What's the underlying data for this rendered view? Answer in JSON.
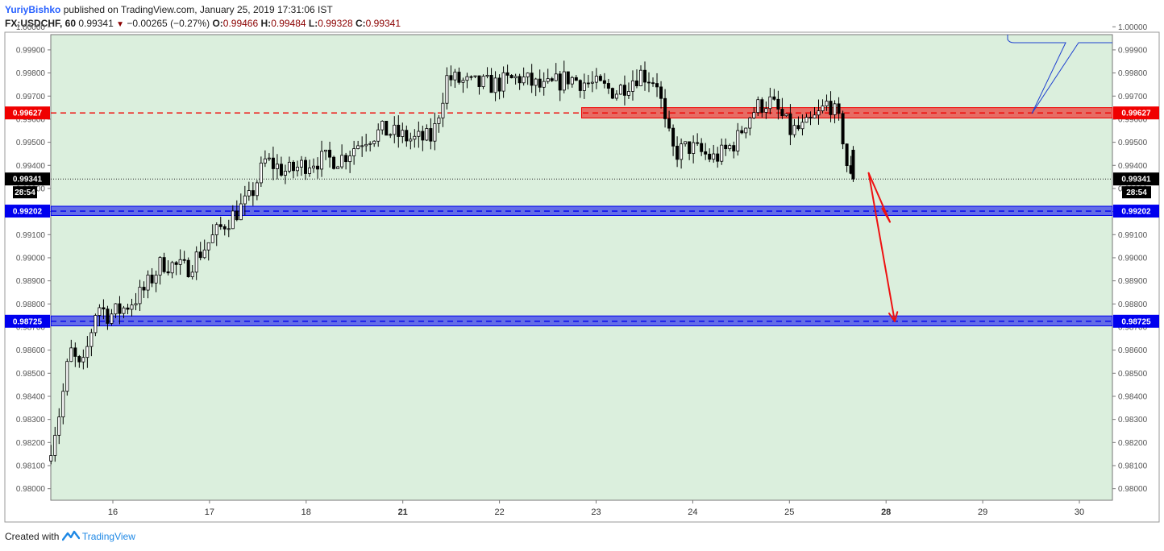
{
  "header": {
    "author": "YuriyBishko",
    "published": "published on TradingView.com, January 25, 2019 17:31:06 IST"
  },
  "ohlc": {
    "symbol": "FX:USDCHF, 60",
    "last": "0.99341",
    "change": "−0.00265 (−0.27%)",
    "o_label": "O:",
    "o": "0.99466",
    "h_label": "H:",
    "h": "0.99484",
    "l_label": "L:",
    "l": "0.99328",
    "c_label": "C:",
    "c": "0.99341"
  },
  "footer": {
    "created_with": "Created with",
    "brand": "TradingView"
  },
  "colors": {
    "background": "#dbefdd",
    "resistance": "#f00000",
    "support": "#0000ee",
    "arrow": "#ee1111",
    "callout": "#1e40d0"
  },
  "chart_data": {
    "type": "candlestick",
    "ylim": [
      0.9795,
      0.99966
    ],
    "y_ticks": [
      "0.98000",
      "0.98100",
      "0.98200",
      "0.98300",
      "0.98400",
      "0.98500",
      "0.98600",
      "0.98700",
      "0.98800",
      "0.98900",
      "0.99000",
      "0.99100",
      "0.99200",
      "0.99300",
      "0.99400",
      "0.99500",
      "0.99600",
      "0.99700",
      "0.99800",
      "0.99900",
      "1.00000"
    ],
    "x_ticks": [
      {
        "label": "16",
        "d": 16,
        "bold": false
      },
      {
        "label": "17",
        "d": 17,
        "bold": false
      },
      {
        "label": "18",
        "d": 18,
        "bold": false
      },
      {
        "label": "21",
        "d": 19,
        "bold": true
      },
      {
        "label": "22",
        "d": 20,
        "bold": false
      },
      {
        "label": "23",
        "d": 21,
        "bold": false
      },
      {
        "label": "24",
        "d": 22,
        "bold": false
      },
      {
        "label": "25",
        "d": 23,
        "bold": false
      },
      {
        "label": "28",
        "d": 24,
        "bold": true
      },
      {
        "label": "29",
        "d": 25,
        "bold": false
      },
      {
        "label": "30",
        "d": 26,
        "bold": false
      }
    ],
    "x_range": [
      15.36,
      26.35
    ],
    "levels": [
      {
        "name": "resistance",
        "price": 0.99627,
        "label": "0.99627",
        "band": [
          0.99605,
          0.9965
        ],
        "band_from": 20.85,
        "color": "#f00000"
      },
      {
        "name": "support-1",
        "price": 0.99202,
        "label": "0.99202",
        "band": [
          0.99183,
          0.99223
        ],
        "band_from": 15.36,
        "color": "#0000ee"
      },
      {
        "name": "support-2",
        "price": 0.98725,
        "label": "0.98725",
        "band": [
          0.98705,
          0.98748
        ],
        "band_from": 15.36,
        "color": "#0000ee"
      }
    ],
    "last_price": {
      "price": 0.99341,
      "label": "0.99341",
      "countdown": "28:54"
    },
    "projection": [
      {
        "from": [
          23.82,
          0.99367
        ],
        "to": [
          24.04,
          0.99155
        ]
      },
      {
        "from": [
          24.04,
          0.99155
        ],
        "to": [
          23.96,
          0.99214
        ]
      },
      {
        "from": [
          23.82,
          0.99367
        ],
        "to": [
          24.09,
          0.98725
        ]
      }
    ],
    "anchors": [
      [
        15.36,
        0.9812
      ],
      [
        15.5,
        0.9835
      ],
      [
        15.6,
        0.986
      ],
      [
        15.72,
        0.985
      ],
      [
        15.88,
        0.988
      ],
      [
        16.0,
        0.9875
      ],
      [
        16.15,
        0.9878
      ],
      [
        16.35,
        0.9885
      ],
      [
        16.55,
        0.9898
      ],
      [
        16.8,
        0.9895
      ],
      [
        17.0,
        0.9905
      ],
      [
        17.2,
        0.9915
      ],
      [
        17.45,
        0.9925
      ],
      [
        17.62,
        0.9942
      ],
      [
        17.85,
        0.9937
      ],
      [
        18.1,
        0.9942
      ],
      [
        18.4,
        0.9943
      ],
      [
        18.65,
        0.9952
      ],
      [
        18.85,
        0.9955
      ],
      [
        19.15,
        0.9951
      ],
      [
        19.35,
        0.9952
      ],
      [
        19.5,
        0.9978
      ],
      [
        19.75,
        0.9975
      ],
      [
        20.0,
        0.9975
      ],
      [
        20.25,
        0.9978
      ],
      [
        20.5,
        0.9973
      ],
      [
        20.75,
        0.9978
      ],
      [
        21.0,
        0.9975
      ],
      [
        21.25,
        0.9972
      ],
      [
        21.5,
        0.998
      ],
      [
        21.68,
        0.9976
      ],
      [
        21.75,
        0.9958
      ],
      [
        21.85,
        0.9945
      ],
      [
        22.0,
        0.9948
      ],
      [
        22.25,
        0.9943
      ],
      [
        22.35,
        0.9945
      ],
      [
        22.5,
        0.9951
      ],
      [
        22.6,
        0.996
      ],
      [
        22.7,
        0.9965
      ],
      [
        22.83,
        0.9968
      ],
      [
        22.95,
        0.9962
      ],
      [
        23.05,
        0.9955
      ],
      [
        23.2,
        0.9956
      ],
      [
        23.35,
        0.9962
      ],
      [
        23.45,
        0.9968
      ],
      [
        23.58,
        0.9956
      ],
      [
        23.66,
        0.9934
      ]
    ],
    "ohlc_last": {
      "o": 0.99466,
      "h": 0.99484,
      "l": 0.99328,
      "c": 0.99341
    }
  }
}
